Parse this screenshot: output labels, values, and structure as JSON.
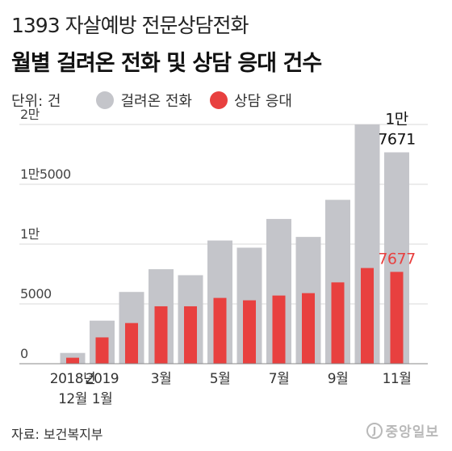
{
  "title": "1393 자살예방 전문상담전화",
  "subtitle": "월별 걸려온 전화 및 상담 응대 건수",
  "unit_label": "단위: 건",
  "colors": {
    "received": "#c4c5ca",
    "answered": "#e8403f",
    "annotation_red": "#e8403f"
  },
  "source": "자료: 보건복지부",
  "logo_text": "중앙일보",
  "logo_icon": "joongang-logo-icon",
  "chart_data": {
    "type": "bar",
    "categories": [
      "2018-12",
      "2019-01",
      "2019-02",
      "2019-03",
      "2019-04",
      "2019-05",
      "2019-06",
      "2019-07",
      "2019-08",
      "2019-09",
      "2019-10",
      "2019-11"
    ],
    "x_tick_labels": [
      {
        "index": 0,
        "lines": [
          "2018년",
          "12월"
        ]
      },
      {
        "index": 1,
        "lines": [
          "2019",
          "1월"
        ]
      },
      {
        "index": 3,
        "lines": [
          "3월"
        ]
      },
      {
        "index": 5,
        "lines": [
          "5월"
        ]
      },
      {
        "index": 7,
        "lines": [
          "7월"
        ]
      },
      {
        "index": 9,
        "lines": [
          "9월"
        ]
      },
      {
        "index": 11,
        "lines": [
          "11월"
        ]
      }
    ],
    "series": [
      {
        "name": "걸려온 전화",
        "values": [
          900,
          3600,
          6000,
          7900,
          7400,
          10300,
          9700,
          12100,
          10600,
          13700,
          20000,
          17671
        ]
      },
      {
        "name": "상담 응대",
        "values": [
          500,
          2200,
          3400,
          4800,
          4800,
          5500,
          5300,
          5700,
          5900,
          6800,
          8000,
          7677
        ]
      }
    ],
    "yticks": [
      {
        "value": 0,
        "label": "0"
      },
      {
        "value": 5000,
        "label": "5000"
      },
      {
        "value": 10000,
        "label": "1만"
      },
      {
        "value": 15000,
        "label": "1만5000"
      },
      {
        "value": 20000,
        "label": "2만"
      }
    ],
    "ylim": [
      0,
      20000
    ],
    "annotations": {
      "received_last": {
        "lines": [
          "1만",
          "7671"
        ]
      },
      "answered_last": "7677"
    },
    "grid": true
  }
}
